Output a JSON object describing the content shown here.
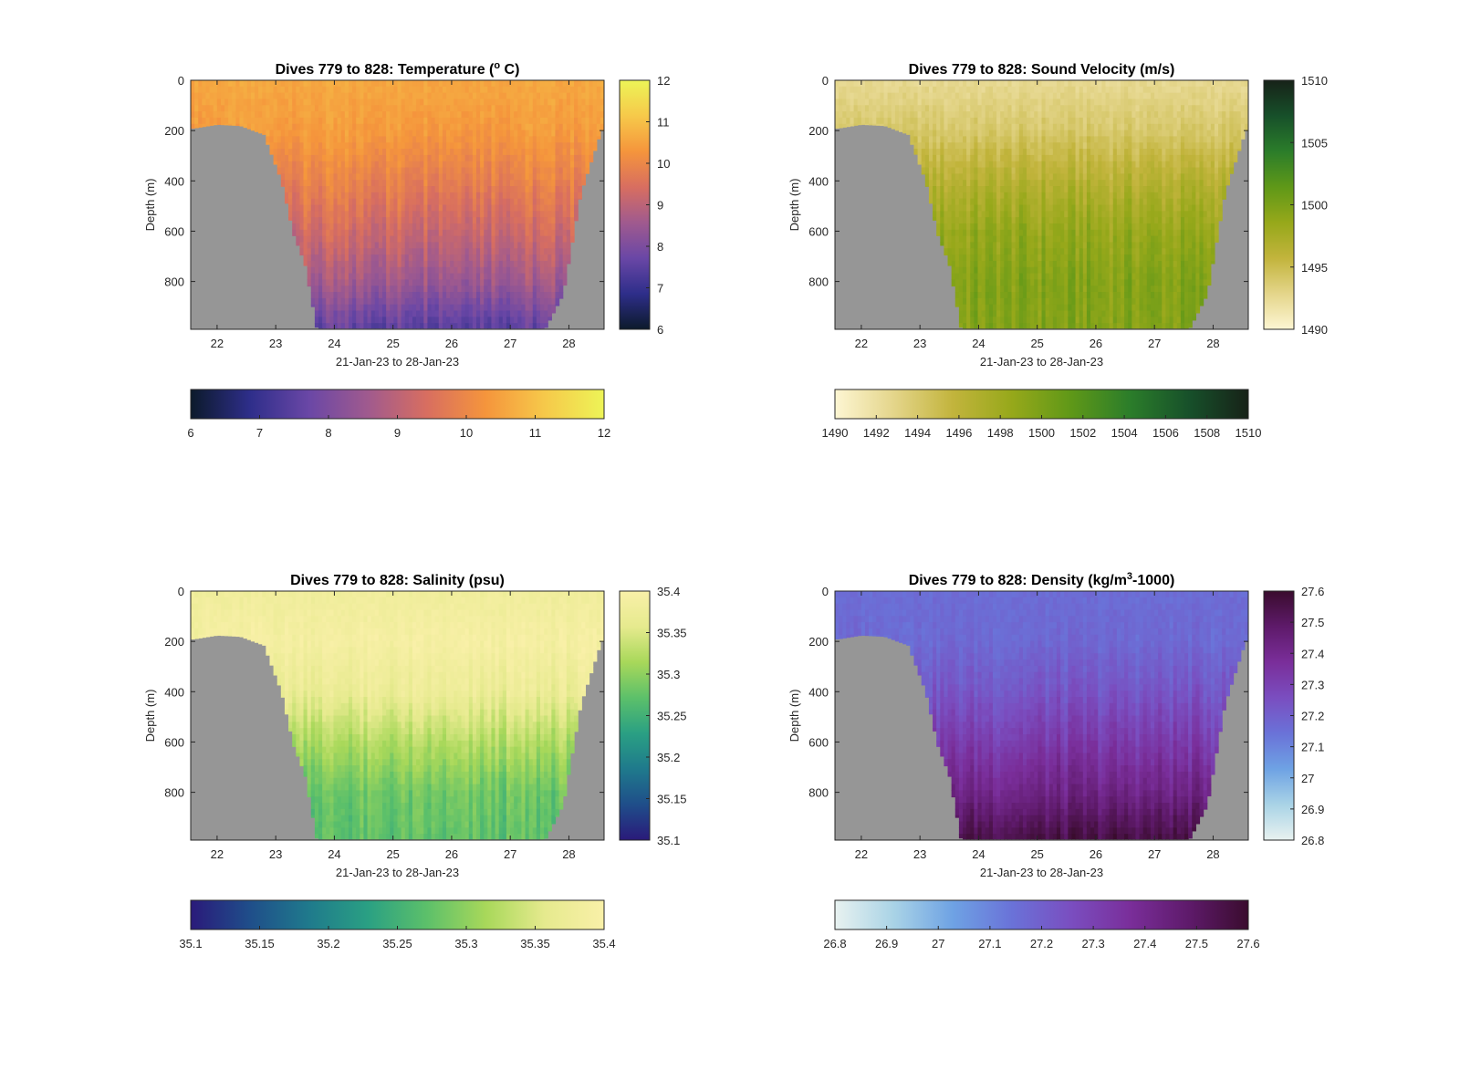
{
  "panels": [
    {
      "id": "temperature",
      "title": "Dives 779 to 828: Temperature (° C)",
      "title_parts": [
        "Dives 779 to 828: Temperature (",
        "o",
        " C)"
      ],
      "xlabel": "21-Jan-23 to 28-Jan-23",
      "ylabel": "Depth (m)",
      "colormap": [
        "#0c1a2b",
        "#2e2e8a",
        "#6a47a6",
        "#a05a8e",
        "#d86e60",
        "#f5953c",
        "#f6c94a",
        "#edf457"
      ],
      "cbar_range": [
        6,
        12
      ],
      "cbar_ticks": [
        "6",
        "7",
        "8",
        "9",
        "10",
        "11",
        "12"
      ],
      "hcbar_ticks": [
        "6",
        "7",
        "8",
        "9",
        "10",
        "11",
        "12"
      ]
    },
    {
      "id": "sound-velocity",
      "title": "Dives 779 to 828: Sound Velocity (m/s)",
      "title_parts": [
        "Dives 779 to 828: Sound Velocity (m/s)",
        "",
        ""
      ],
      "xlabel": "21-Jan-23 to 28-Jan-23",
      "ylabel": "Depth (m)",
      "colormap": [
        "#fdf6d3",
        "#e4d58a",
        "#c2b43c",
        "#96a81a",
        "#5f9818",
        "#2b7d2a",
        "#17502a",
        "#172218"
      ],
      "cbar_range": [
        1490,
        1510
      ],
      "cbar_ticks": [
        "1490",
        "1495",
        "1500",
        "1505",
        "1510"
      ],
      "hcbar_ticks": [
        "1490",
        "1492",
        "1494",
        "1496",
        "1498",
        "1500",
        "1502",
        "1504",
        "1506",
        "1508",
        "1510"
      ]
    },
    {
      "id": "salinity",
      "title": "Dives 779 to 828: Salinity (psu)",
      "title_parts": [
        "Dives 779 to 828: Salinity (psu)",
        "",
        ""
      ],
      "xlabel": "21-Jan-23 to 28-Jan-23",
      "ylabel": "Depth (m)",
      "colormap": [
        "#2a1a7a",
        "#1f4e8a",
        "#1f7a8c",
        "#2aa083",
        "#5cc06a",
        "#a8d85a",
        "#e6ea8e",
        "#f9f0a8"
      ],
      "cbar_range": [
        35.1,
        35.4
      ],
      "cbar_ticks": [
        "35.1",
        "35.15",
        "35.2",
        "35.25",
        "35.3",
        "35.35",
        "35.4"
      ],
      "hcbar_ticks": [
        "35.1",
        "35.15",
        "35.2",
        "35.25",
        "35.3",
        "35.35",
        "35.4"
      ]
    },
    {
      "id": "density",
      "title": "Dives 779 to 828: Density (kg/m",
      "title_parts": [
        "Dives 779 to 828: Density (kg/m",
        "3",
        "-1000)"
      ],
      "xlabel": "21-Jan-23 to 28-Jan-23",
      "ylabel": "Depth (m)",
      "colormap": [
        "#e8f2f0",
        "#a9d3e6",
        "#6ea2e4",
        "#6a72d8",
        "#7a4ec0",
        "#7a2e9a",
        "#5e1a6a",
        "#3a0c2e"
      ],
      "cbar_range": [
        26.8,
        27.6
      ],
      "cbar_ticks": [
        "26.8",
        "26.9",
        "27",
        "27.1",
        "27.2",
        "27.3",
        "27.4",
        "27.5",
        "27.6"
      ],
      "hcbar_ticks": [
        "26.8",
        "26.9",
        "27",
        "27.1",
        "27.2",
        "27.3",
        "27.4",
        "27.5",
        "27.6"
      ]
    }
  ],
  "chart_data": [
    {
      "type": "heatmap",
      "title": "Dives 779 to 828: Temperature (° C)",
      "xlabel": "21-Jan-23 to 28-Jan-23",
      "ylabel": "Depth (m)",
      "x_ticks": [
        22,
        23,
        24,
        25,
        26,
        27,
        28
      ],
      "y_ticks": [
        0,
        200,
        400,
        600,
        800
      ],
      "xlim": [
        21.55,
        28.6
      ],
      "ylim": [
        990,
        0
      ],
      "y_reversed": true,
      "color_range": [
        6,
        12
      ],
      "profile_days": [
        21.6,
        22.0,
        22.4,
        22.8,
        23.1,
        23.3,
        23.5,
        23.7,
        24.0,
        24.5,
        25.0,
        25.5,
        26.0,
        26.5,
        27.0,
        27.3,
        27.6,
        27.9,
        28.2,
        28.55
      ],
      "bottom_depth_m": [
        190,
        175,
        180,
        215,
        400,
        610,
        730,
        985,
        985,
        985,
        985,
        985,
        985,
        985,
        985,
        985,
        985,
        850,
        450,
        200
      ],
      "depth_levels_m": [
        0,
        200,
        400,
        600,
        800,
        980
      ],
      "mean_profile": [
        10.6,
        10.4,
        9.9,
        9.3,
        8.6,
        7.6
      ]
    },
    {
      "type": "heatmap",
      "title": "Dives 779 to 828: Sound Velocity (m/s)",
      "xlabel": "21-Jan-23 to 28-Jan-23",
      "ylabel": "Depth (m)",
      "x_ticks": [
        22,
        23,
        24,
        25,
        26,
        27,
        28
      ],
      "y_ticks": [
        0,
        200,
        400,
        600,
        800
      ],
      "xlim": [
        21.55,
        28.6
      ],
      "ylim": [
        990,
        0
      ],
      "y_reversed": true,
      "color_range": [
        1490,
        1510
      ],
      "profile_days": [
        21.6,
        22.0,
        22.4,
        22.8,
        23.1,
        23.3,
        23.5,
        23.7,
        24.0,
        24.5,
        25.0,
        25.5,
        26.0,
        26.5,
        27.0,
        27.3,
        27.6,
        27.9,
        28.2,
        28.55
      ],
      "bottom_depth_m": [
        190,
        175,
        180,
        215,
        400,
        610,
        730,
        985,
        985,
        985,
        985,
        985,
        985,
        985,
        985,
        985,
        985,
        850,
        450,
        200
      ],
      "depth_levels_m": [
        0,
        200,
        400,
        600,
        800,
        980
      ],
      "mean_profile": [
        1492.5,
        1494.0,
        1496.5,
        1498.5,
        1499.5,
        1499.5
      ]
    },
    {
      "type": "heatmap",
      "title": "Dives 779 to 828: Salinity (psu)",
      "xlabel": "21-Jan-23 to 28-Jan-23",
      "ylabel": "Depth (m)",
      "x_ticks": [
        22,
        23,
        24,
        25,
        26,
        27,
        28
      ],
      "y_ticks": [
        0,
        200,
        400,
        600,
        800
      ],
      "xlim": [
        21.55,
        28.6
      ],
      "ylim": [
        990,
        0
      ],
      "y_reversed": true,
      "color_range": [
        35.1,
        35.4
      ],
      "profile_days": [
        21.6,
        22.0,
        22.4,
        22.8,
        23.1,
        23.3,
        23.5,
        23.7,
        24.0,
        24.5,
        25.0,
        25.5,
        26.0,
        26.5,
        27.0,
        27.3,
        27.6,
        27.9,
        28.2,
        28.55
      ],
      "bottom_depth_m": [
        190,
        175,
        180,
        215,
        400,
        610,
        730,
        985,
        985,
        985,
        985,
        985,
        985,
        985,
        985,
        985,
        985,
        850,
        450,
        200
      ],
      "depth_levels_m": [
        0,
        200,
        400,
        600,
        800,
        980
      ],
      "mean_profile": [
        35.38,
        35.39,
        35.37,
        35.32,
        35.28,
        35.27
      ]
    },
    {
      "type": "heatmap",
      "title": "Dives 779 to 828: Density (kg/m3-1000)",
      "xlabel": "21-Jan-23 to 28-Jan-23",
      "ylabel": "Depth (m)",
      "x_ticks": [
        22,
        23,
        24,
        25,
        26,
        27,
        28
      ],
      "y_ticks": [
        0,
        200,
        400,
        600,
        800
      ],
      "xlim": [
        21.55,
        28.6
      ],
      "ylim": [
        990,
        0
      ],
      "y_reversed": true,
      "color_range": [
        26.8,
        27.6
      ],
      "profile_days": [
        21.6,
        22.0,
        22.4,
        22.8,
        23.1,
        23.3,
        23.5,
        23.7,
        24.0,
        24.5,
        25.0,
        25.5,
        26.0,
        26.5,
        27.0,
        27.3,
        27.6,
        27.9,
        28.2,
        28.55
      ],
      "bottom_depth_m": [
        190,
        175,
        180,
        215,
        400,
        610,
        730,
        985,
        985,
        985,
        985,
        985,
        985,
        985,
        985,
        985,
        985,
        850,
        450,
        200
      ],
      "depth_levels_m": [
        0,
        200,
        400,
        600,
        800,
        980
      ],
      "mean_profile": [
        27.16,
        27.17,
        27.23,
        27.32,
        27.42,
        27.55
      ]
    }
  ],
  "colors": {
    "land": "#969696",
    "axis": "#262626"
  }
}
